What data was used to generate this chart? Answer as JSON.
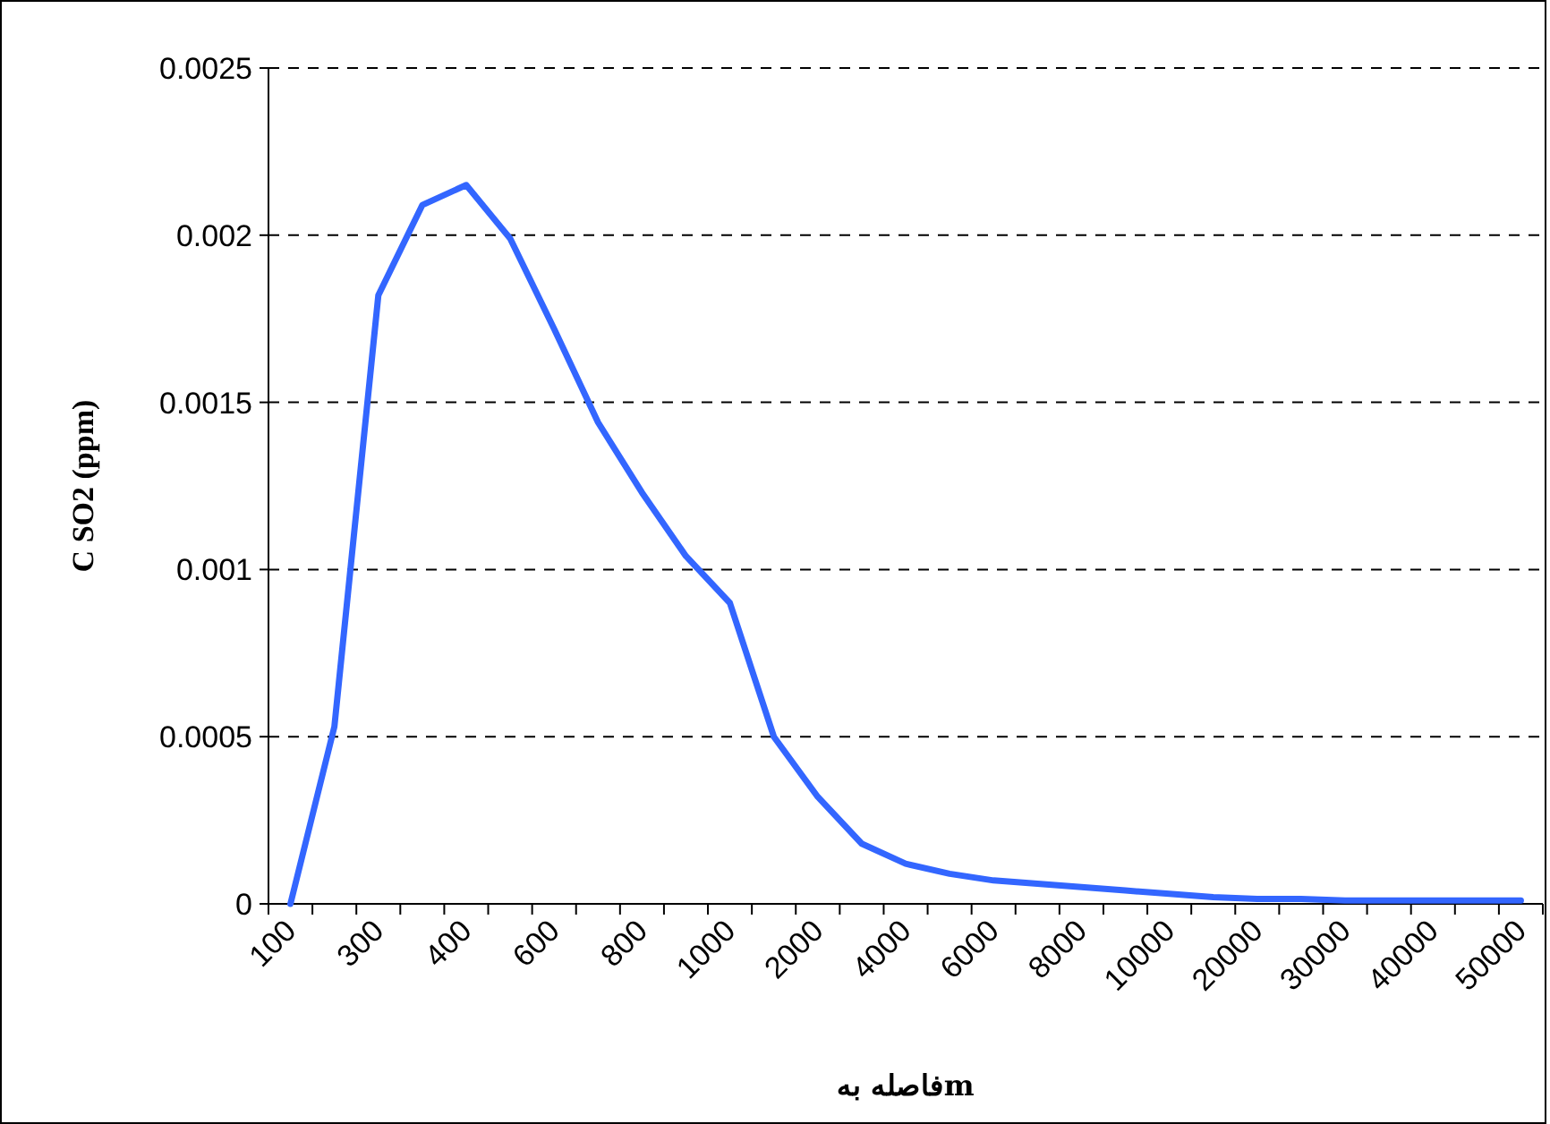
{
  "chart_data": {
    "type": "line",
    "xlabel": "فاصله بهm",
    "ylabel": "C SO2 (ppm)",
    "categories": [
      "100",
      null,
      "300",
      null,
      "400",
      null,
      "600",
      null,
      "800",
      null,
      "1000",
      null,
      "2000",
      null,
      "4000",
      null,
      "6000",
      null,
      "8000",
      null,
      "10000",
      null,
      "20000",
      null,
      "30000",
      null,
      "40000",
      null,
      "50000"
    ],
    "series": [
      {
        "color": "#3366ff",
        "values": [
          0,
          0.00053,
          0.00182,
          0.00209,
          0.00215,
          0.00199,
          0.00172,
          0.00144,
          0.00123,
          0.00104,
          0.0009,
          0.0005,
          0.00032,
          0.00018,
          0.00012,
          9e-05,
          7e-05,
          6e-05,
          5e-05,
          4e-05,
          3e-05,
          2e-05,
          1.5e-05,
          1.5e-05,
          1e-05,
          1e-05,
          1e-05,
          1e-05,
          1e-05
        ]
      }
    ],
    "ylim": [
      0,
      0.0025
    ],
    "yticks": [
      0,
      0.0005,
      0.001,
      0.0015,
      0.002,
      0.0025
    ],
    "grid": "y",
    "marker": "none",
    "line_style": "solid"
  }
}
